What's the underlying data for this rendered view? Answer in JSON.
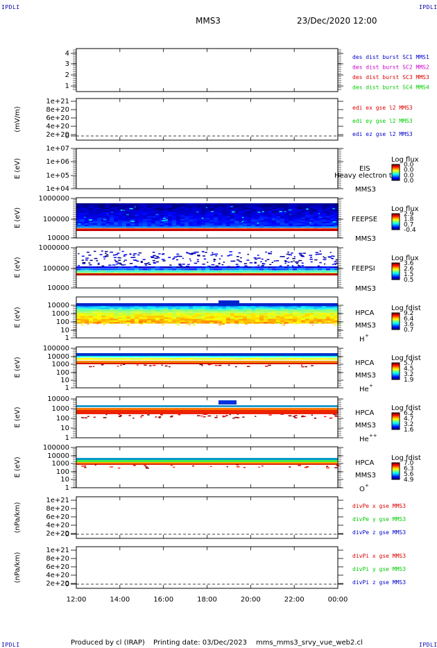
{
  "corner_label": "IPDLI",
  "header": {
    "spacecraft": "MMS3",
    "date": "23/Dec/2020 12:00"
  },
  "footer": {
    "producer": "Produced by cl (IRAP)",
    "printing": "Printing date: 03/Dec/2023",
    "script": "mms_mms3_srvy_vue_web2.cl"
  },
  "colors": {
    "axis": "#000000",
    "blue": "#0000cc",
    "magenta": "#cc00cc",
    "red": "#dd0000",
    "green": "#00cc00",
    "dashed": "#000000"
  },
  "chart_data": {
    "type": "heatmap",
    "x_range": [
      "12:00",
      "00:00"
    ],
    "x_ticks": [
      "12:00",
      "14:00",
      "16:00",
      "18:00",
      "20:00",
      "22:00",
      "00:00"
    ],
    "panels": [
      {
        "kind": "line",
        "ylabel": "",
        "ylim": [
          0.5,
          4.5
        ],
        "yticks": [
          "4",
          "3",
          "2",
          "1"
        ],
        "legend": [
          {
            "text": "des dist burst SC1 MMS1",
            "color": "#0000cc"
          },
          {
            "text": "des dist burst SC2 MMS2",
            "color": "#cc00cc"
          },
          {
            "text": "des dist burst SC3 MMS3",
            "color": "#dd0000"
          },
          {
            "text": "des dist burst SC4 MMS4",
            "color": "#00cc00"
          }
        ]
      },
      {
        "kind": "line",
        "ylabel": "(mV/m)",
        "yticks": [
          "1e+21",
          "8e+20",
          "6e+20",
          "4e+20",
          "2e+20",
          "0"
        ],
        "zero_line": true,
        "legend": [
          {
            "text": "edi ex gse l2 MMS3",
            "color": "#dd0000"
          },
          {
            "text": "edi ey gse l2 MMS3",
            "color": "#00cc00"
          },
          {
            "text": "edi ez gse l2 MMS3",
            "color": "#0000cc"
          }
        ]
      },
      {
        "kind": "spectrogram",
        "ylabel": "E (eV)",
        "yticks": [
          "1e+07",
          "1e+06",
          "1e+05",
          "1e+04"
        ],
        "instrument": "EIS",
        "subtitle": "Heavy electron to",
        "sc": "MMS3",
        "cbar_title": "Log flux",
        "cbar_ticks": [
          "0.0",
          "0.0",
          "0.0",
          "0.0"
        ],
        "fill": "none"
      },
      {
        "kind": "spectrogram",
        "ylabel": "E (eV)",
        "yticks": [
          "1000000",
          "100000",
          "10000"
        ],
        "instrument": "FEEPSE",
        "sc": "MMS3",
        "cbar_title": "Log flux",
        "cbar_ticks": [
          "2.9",
          "1.8",
          "0.7",
          "-0.4"
        ],
        "fill": "feepse"
      },
      {
        "kind": "spectrogram",
        "ylabel": "E (eV)",
        "yticks": [
          "1000000",
          "100000",
          "10000"
        ],
        "instrument": "FEEPSI",
        "sc": "MMS3",
        "cbar_title": "Log flux",
        "cbar_ticks": [
          "3.6",
          "2.6",
          "1.5",
          "0.5"
        ],
        "fill": "feepsi"
      },
      {
        "kind": "spectrogram",
        "ylabel": "E (eV)",
        "yticks": [
          "10000",
          "1000",
          "100",
          "10",
          "1"
        ],
        "instrument": "HPCA",
        "sc": "MMS3",
        "species": "H",
        "charge": "+",
        "cbar_title": "Log fdist",
        "cbar_ticks": [
          "9.2",
          "6.4",
          "3.6",
          "0.7"
        ],
        "fill": "hplus"
      },
      {
        "kind": "spectrogram",
        "ylabel": "E (eV)",
        "yticks": [
          "100000",
          "10000",
          "1000",
          "100",
          "10",
          "1"
        ],
        "instrument": "HPCA",
        "sc": "MMS3",
        "species": "He",
        "charge": "+",
        "cbar_title": "Log fdist",
        "cbar_ticks": [
          "5.7",
          "4.5",
          "3.2",
          "1.9"
        ],
        "fill": "heplus"
      },
      {
        "kind": "spectrogram",
        "ylabel": "E (eV)",
        "yticks": [
          "10000",
          "1000",
          "100",
          "10",
          "1"
        ],
        "instrument": "HPCA",
        "sc": "MMS3",
        "species": "He",
        "charge": "++",
        "cbar_title": "Log fdist",
        "cbar_ticks": [
          "6.2",
          "4.7",
          "3.2",
          "1.6"
        ],
        "fill": "hepp"
      },
      {
        "kind": "spectrogram",
        "ylabel": "E (eV)",
        "yticks": [
          "100000",
          "10000",
          "1000",
          "100",
          "10",
          "1"
        ],
        "instrument": "HPCA",
        "sc": "MMS3",
        "species": "O",
        "charge": "+",
        "cbar_title": "Log fdist",
        "cbar_ticks": [
          "7.0",
          "6.3",
          "5.6",
          "4.9"
        ],
        "fill": "oplus"
      },
      {
        "kind": "line",
        "ylabel": "(nPa/km)",
        "yticks": [
          "1e+21",
          "8e+20",
          "6e+20",
          "4e+20",
          "2e+20",
          "0"
        ],
        "zero_line": true,
        "legend": [
          {
            "text": "divPe x gse MMS3",
            "color": "#dd0000"
          },
          {
            "text": "divPe y gse MMS3",
            "color": "#00cc00"
          },
          {
            "text": "divPe z gse MMS3",
            "color": "#0000cc"
          }
        ]
      },
      {
        "kind": "line",
        "ylabel": "(nPa/km)",
        "yticks": [
          "1e+21",
          "8e+20",
          "6e+20",
          "4e+20",
          "2e+20",
          "0"
        ],
        "zero_line": true,
        "legend": [
          {
            "text": "divPi x gse MMS3",
            "color": "#dd0000"
          },
          {
            "text": "divPi y gse MMS3",
            "color": "#00cc00"
          },
          {
            "text": "divPi z gse MMS3",
            "color": "#0000cc"
          }
        ]
      }
    ]
  }
}
